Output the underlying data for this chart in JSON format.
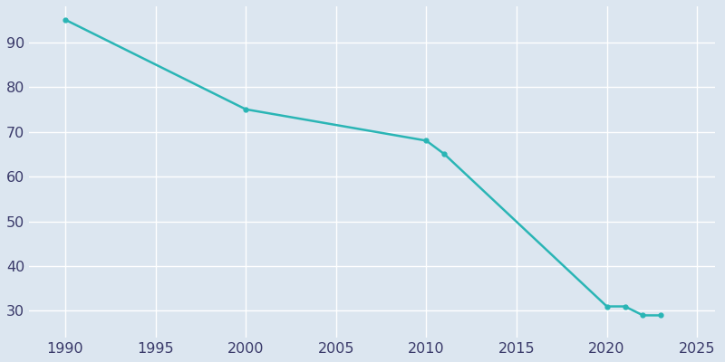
{
  "years": [
    1990,
    2000,
    2010,
    2011,
    2020,
    2021,
    2022,
    2023
  ],
  "population": [
    95,
    75,
    68,
    65,
    31,
    31,
    29,
    29
  ],
  "line_color": "#2ab5b5",
  "marker": "o",
  "marker_size": 3.5,
  "line_width": 1.8,
  "bg_color": "#dce6f0",
  "plot_bg_color": "#dce6f0",
  "grid_color": "#ffffff",
  "tick_color": "#3a3a6a",
  "xlim": [
    1988,
    2026
  ],
  "ylim": [
    24,
    98
  ],
  "xticks": [
    1990,
    1995,
    2000,
    2005,
    2010,
    2015,
    2020,
    2025
  ],
  "yticks": [
    30,
    40,
    50,
    60,
    70,
    80,
    90
  ],
  "tick_fontsize": 11.5
}
